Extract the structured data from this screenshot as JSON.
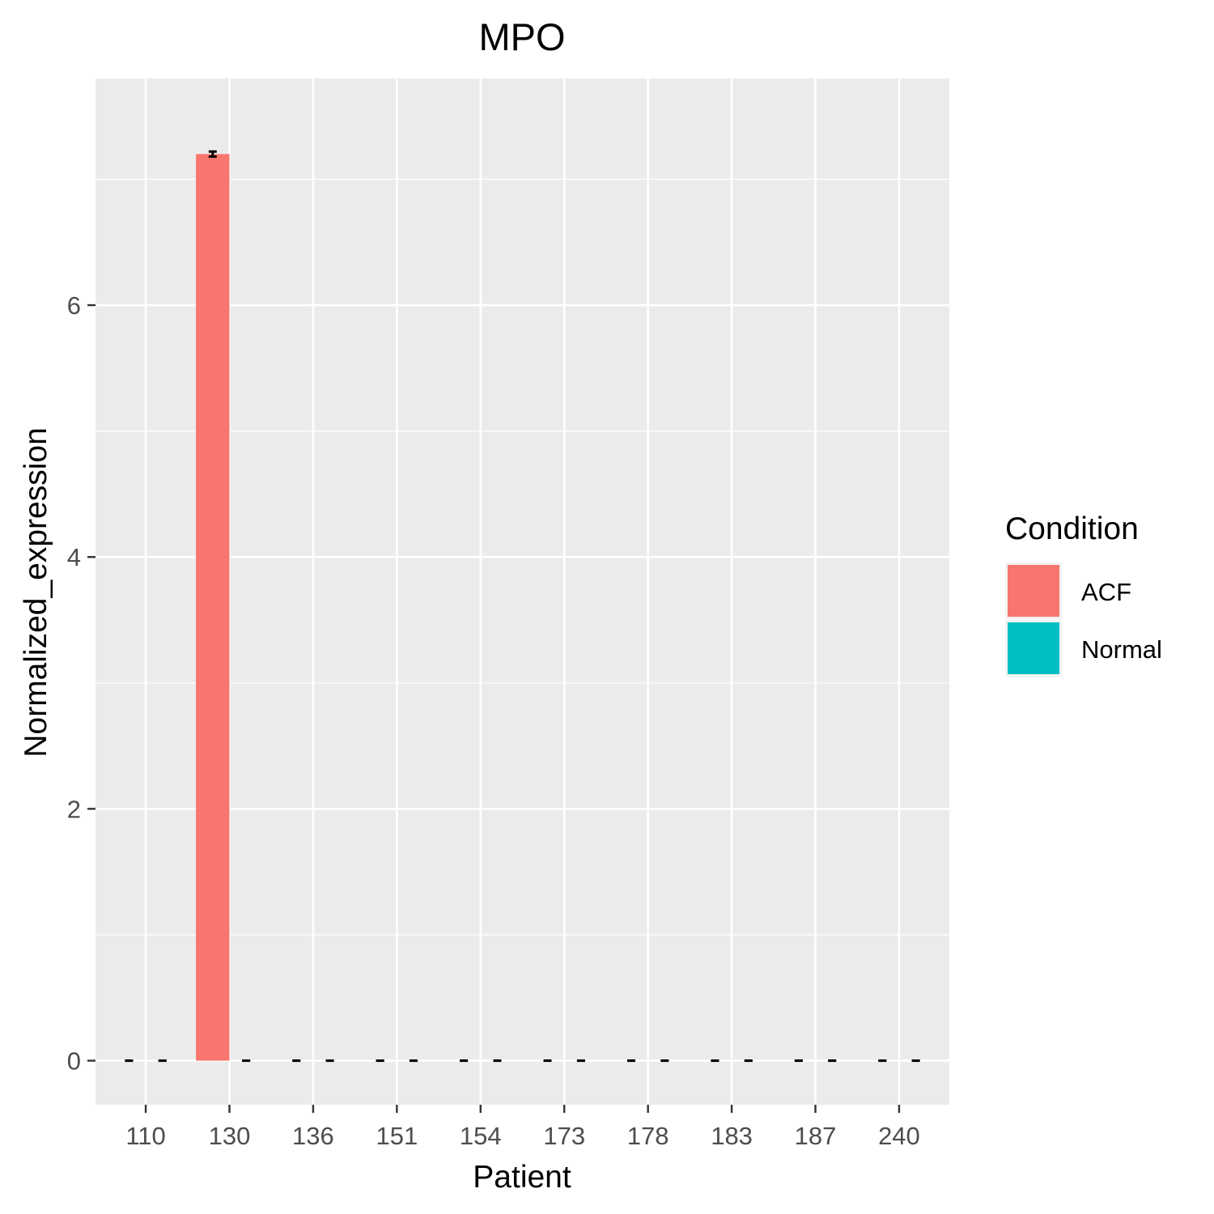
{
  "chart_data": {
    "type": "bar",
    "title": "MPO",
    "xlabel": "Patient",
    "ylabel": "Normalized_expression",
    "categories": [
      "110",
      "130",
      "136",
      "151",
      "154",
      "173",
      "178",
      "183",
      "187",
      "240"
    ],
    "series": [
      {
        "name": "ACF",
        "color": "#F8766D",
        "values": [
          0,
          7.2,
          0,
          0,
          0,
          0,
          0,
          0,
          0,
          0
        ],
        "errors": [
          0,
          0.02,
          0,
          0,
          0,
          0,
          0,
          0,
          0,
          0
        ]
      },
      {
        "name": "Normal",
        "color": "#00BFC4",
        "values": [
          0,
          0,
          0,
          0,
          0,
          0,
          0,
          0,
          0,
          0
        ],
        "errors": [
          0,
          0,
          0,
          0,
          0,
          0,
          0,
          0,
          0,
          0
        ]
      }
    ],
    "ylim": [
      -0.35,
      7.8
    ],
    "yticks": [
      0,
      2,
      4,
      6
    ],
    "grid": true,
    "panel_background": "#EBEBEB",
    "legend": {
      "title": "Condition",
      "placement": "right"
    }
  }
}
